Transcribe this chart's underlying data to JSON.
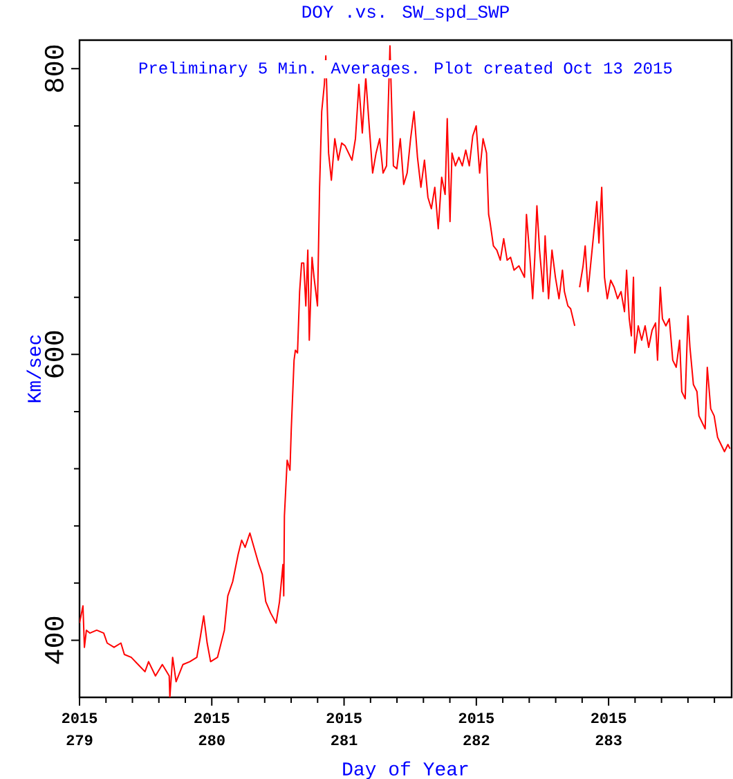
{
  "chart_data": {
    "type": "line",
    "title": "DOY .vs. SW_spd_SWP",
    "xlabel": "Day of Year",
    "ylabel": "Km/sec",
    "annotations": [
      "Preliminary 5 Min. Averages. Plot created Oct 13 2015",
      "2015",
      "2015",
      "2015",
      "2015",
      "2015"
    ],
    "color": "#ff0000",
    "x": [
      279.0,
      279.026,
      279.037,
      279.052,
      279.078,
      279.13,
      279.183,
      279.209,
      279.261,
      279.313,
      279.339,
      279.391,
      279.443,
      279.495,
      279.522,
      279.574,
      279.626,
      279.678,
      279.683,
      279.704,
      279.73,
      279.782,
      279.834,
      279.887,
      279.913,
      279.939,
      279.965,
      279.991,
      280.043,
      280.095,
      280.121,
      280.158,
      280.199,
      280.226,
      280.252,
      280.288,
      280.319,
      280.356,
      280.382,
      280.408,
      280.445,
      280.486,
      280.512,
      280.538,
      280.544,
      280.549,
      280.57,
      280.591,
      280.601,
      280.622,
      280.632,
      280.648,
      280.664,
      280.679,
      280.695,
      280.711,
      280.726,
      280.737,
      280.758,
      280.773,
      280.799,
      280.815,
      280.831,
      280.851,
      280.862,
      280.883,
      280.904,
      280.93,
      280.956,
      280.982,
      281.008,
      281.034,
      281.06,
      281.086,
      281.112,
      281.138,
      281.164,
      281.19,
      281.216,
      281.242,
      281.269,
      281.295,
      281.321,
      281.347,
      281.373,
      281.399,
      281.425,
      281.451,
      281.477,
      281.503,
      281.529,
      281.555,
      281.581,
      281.608,
      281.634,
      281.66,
      281.686,
      281.712,
      281.738,
      281.764,
      281.78,
      281.801,
      281.816,
      281.842,
      281.868,
      281.894,
      281.92,
      281.947,
      281.973,
      281.999,
      282.025,
      282.051,
      282.077,
      282.093,
      282.103,
      282.129,
      282.155,
      282.181,
      282.207,
      282.233,
      282.259,
      282.285,
      282.322,
      282.364,
      282.379,
      282.405,
      282.426,
      282.442,
      282.458,
      282.478,
      282.505,
      282.52,
      282.546,
      282.572,
      282.598,
      282.625,
      282.651,
      282.666,
      282.692,
      282.713,
      282.744,
      282.76,
      282.781,
      282.807,
      282.823,
      282.844,
      282.875,
      282.911,
      282.927,
      282.948,
      282.969,
      282.99,
      283.016,
      283.042,
      283.068,
      283.094,
      283.12,
      283.136,
      283.156,
      283.172,
      283.188,
      283.198,
      283.224,
      283.25,
      283.276,
      283.303,
      283.329,
      283.355,
      283.37,
      283.391,
      283.407,
      283.433,
      283.459,
      283.485,
      283.511,
      283.537,
      283.553,
      283.579,
      283.6,
      283.615,
      283.641,
      283.668,
      283.683,
      283.709,
      283.73,
      283.746,
      283.772,
      283.798,
      283.824,
      283.85,
      283.876,
      283.902,
      283.918
    ],
    "values": [
      412,
      424,
      395,
      407,
      405,
      407,
      405,
      398,
      395,
      398,
      390,
      388,
      383,
      378,
      385,
      375,
      383,
      375,
      360,
      388,
      371,
      383,
      385,
      388,
      402,
      417,
      398,
      385,
      388,
      407,
      431,
      441,
      460,
      470,
      465,
      475,
      465,
      453,
      446,
      427,
      419,
      412,
      427,
      453,
      431,
      487,
      526,
      519,
      548,
      596,
      603,
      601,
      644,
      664,
      664,
      634,
      673,
      610,
      668,
      654,
      634,
      717,
      770,
      789,
      809,
      741,
      722,
      751,
      736,
      748,
      746,
      741,
      736,
      751,
      789,
      755,
      794,
      760,
      727,
      741,
      751,
      727,
      732,
      816,
      732,
      730,
      751,
      719,
      727,
      751,
      770,
      738,
      717,
      736,
      710,
      702,
      717,
      688,
      724,
      712,
      765,
      693,
      741,
      732,
      738,
      732,
      743,
      732,
      753,
      760,
      727,
      751,
      741,
      698,
      693,
      676,
      673,
      666,
      681,
      666,
      668,
      659,
      662,
      654,
      698,
      668,
      639,
      668,
      704,
      673,
      644,
      683,
      639,
      673,
      654,
      639,
      659,
      644,
      634,
      632,
      620,
      null,
      647,
      662,
      676,
      644,
      673,
      707,
      678,
      717,
      654,
      639,
      652,
      647,
      639,
      644,
      630,
      659,
      625,
      613,
      654,
      601,
      620,
      610,
      620,
      605,
      617,
      622,
      596,
      647,
      625,
      620,
      625,
      596,
      591,
      610,
      574,
      569,
      627,
      605,
      579,
      574,
      557,
      552,
      548,
      591,
      562,
      557,
      542,
      537,
      532,
      537,
      534
    ],
    "xlim": [
      279,
      283.93
    ],
    "ylim": [
      360,
      820
    ],
    "xticks": [
      279,
      {
        "value": 279.2,
        "label": null
      },
      {
        "value": 279.4,
        "label": null
      },
      {
        "value": 279.6,
        "label": null
      },
      {
        "value": 279.8,
        "label": null
      },
      280,
      {
        "value": 280.2,
        "label": null
      },
      {
        "value": 280.4,
        "label": null
      },
      {
        "value": 280.6,
        "label": null
      },
      {
        "value": 280.8,
        "label": null
      },
      281,
      {
        "value": 281.2,
        "label": null
      },
      {
        "value": 281.4,
        "label": null
      },
      {
        "value": 281.6,
        "label": null
      },
      {
        "value": 281.8,
        "label": null
      },
      282,
      {
        "value": 282.2,
        "label": null
      },
      {
        "value": 282.4,
        "label": null
      },
      {
        "value": 282.6,
        "label": null
      },
      {
        "value": 282.8,
        "label": null
      },
      283,
      {
        "value": 283.2,
        "label": null
      },
      {
        "value": 283.4,
        "label": null
      },
      {
        "value": 283.6,
        "label": null
      },
      {
        "value": 283.8,
        "label": null
      }
    ],
    "yticks": [
      400,
      {
        "value": 440,
        "label": null
      },
      {
        "value": 480,
        "label": null
      },
      {
        "value": 520,
        "label": null
      },
      {
        "value": 560,
        "label": null
      },
      600,
      {
        "value": 640,
        "label": null
      },
      {
        "value": 680,
        "label": null
      },
      {
        "value": 720,
        "label": null
      },
      {
        "value": 760,
        "label": null
      },
      800
    ]
  }
}
